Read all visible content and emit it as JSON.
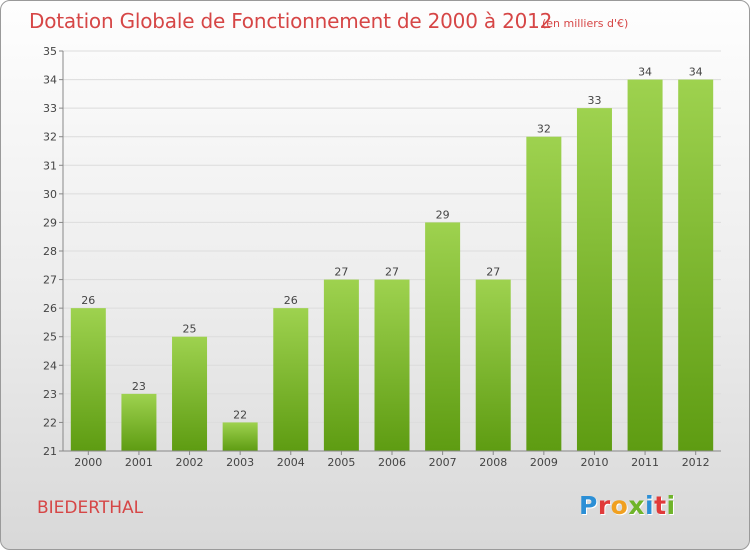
{
  "header": {
    "title": "Dotation Globale de Fonctionnement de 2000 à 2012",
    "subtitle": "(en milliers d'€)"
  },
  "footer": {
    "city": "BIEDERTHAL",
    "logo": "Proxiti",
    "logo_colors": [
      "#2b8fd6",
      "#e03a3a",
      "#f0a020",
      "#6fb42a",
      "#2b8fd6",
      "#e03a3a",
      "#6fb42a"
    ]
  },
  "chart_data": {
    "type": "bar",
    "title": "Dotation Globale de Fonctionnement de 2000 à 2012",
    "subtitle": "(en milliers d'€)",
    "xlabel": "",
    "ylabel": "",
    "categories": [
      "2000",
      "2001",
      "2002",
      "2003",
      "2004",
      "2005",
      "2006",
      "2007",
      "2008",
      "2009",
      "2010",
      "2011",
      "2012"
    ],
    "values": [
      26,
      23,
      25,
      22,
      26,
      27,
      27,
      29,
      27,
      32,
      33,
      34,
      34
    ],
    "ylim": [
      21,
      35
    ],
    "yticks": [
      21,
      22,
      23,
      24,
      25,
      26,
      27,
      28,
      29,
      30,
      31,
      32,
      33,
      34,
      35
    ],
    "grid": true,
    "legend": "none",
    "bar_color_top": "#9ed24f",
    "bar_color_bottom": "#5e9c12"
  }
}
